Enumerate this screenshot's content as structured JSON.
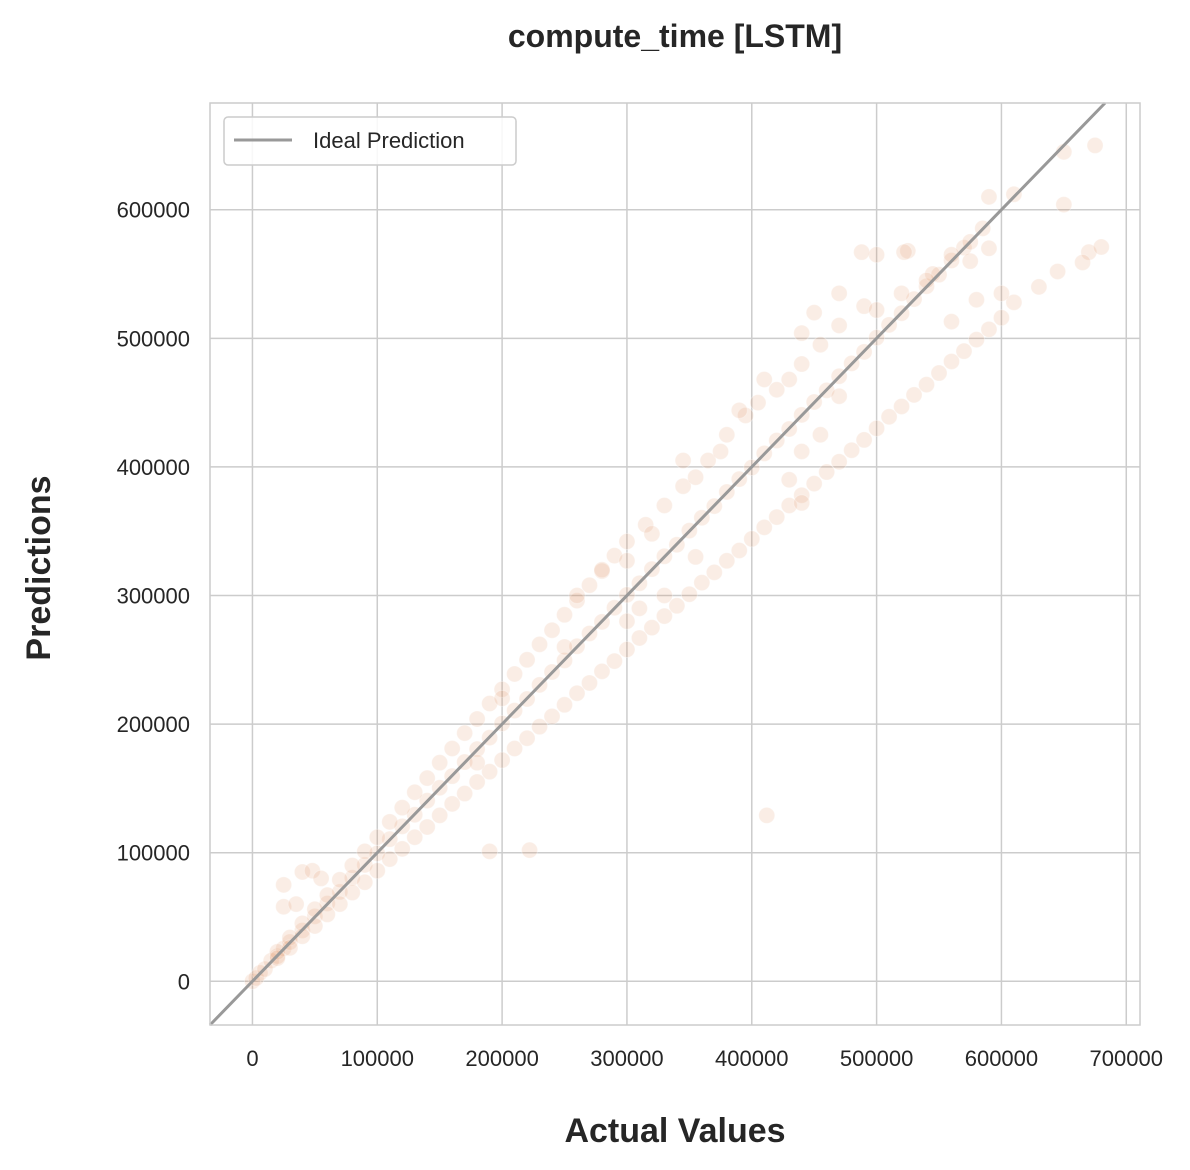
{
  "chart_data": {
    "type": "scatter",
    "title": "compute_time [LSTM]",
    "xlabel": "Actual Values",
    "ylabel": "Predictions",
    "xlim": [
      -34000,
      711000
    ],
    "ylim": [
      -34000,
      683000
    ],
    "x_ticks": [
      0,
      100000,
      200000,
      300000,
      400000,
      500000,
      600000,
      700000
    ],
    "y_ticks": [
      0,
      100000,
      200000,
      300000,
      400000,
      500000,
      600000
    ],
    "x_tick_labels": [
      "0",
      "100000",
      "200000",
      "300000",
      "400000",
      "500000",
      "600000",
      "700000"
    ],
    "y_tick_labels": [
      "0",
      "100000",
      "200000",
      "300000",
      "400000",
      "500000",
      "600000"
    ],
    "grid": true,
    "legend": {
      "position": "top-left",
      "entries": [
        "Ideal Prediction"
      ]
    },
    "reference_line": {
      "name": "Ideal Prediction",
      "slope": 1,
      "intercept": 0,
      "color": "#999999"
    },
    "point_color": "#dd8452",
    "point_alpha": 0.15,
    "series": [
      {
        "band": "ideal",
        "points": [
          [
            0,
            0
          ],
          [
            3000,
            2500
          ],
          [
            6000,
            6500
          ],
          [
            10000,
            9500
          ],
          [
            15000,
            16000
          ],
          [
            20000,
            19500
          ],
          [
            25000,
            25500
          ],
          [
            30000,
            30500
          ],
          [
            40000,
            39500
          ],
          [
            50000,
            50500
          ],
          [
            60000,
            60500
          ],
          [
            70000,
            69500
          ],
          [
            80000,
            80500
          ],
          [
            90000,
            90500
          ],
          [
            100000,
            99500
          ],
          [
            110000,
            110500
          ],
          [
            120000,
            120500
          ],
          [
            130000,
            129500
          ],
          [
            140000,
            140500
          ],
          [
            150000,
            150500
          ],
          [
            160000,
            159500
          ],
          [
            170000,
            170500
          ],
          [
            180000,
            180500
          ],
          [
            190000,
            189500
          ],
          [
            200000,
            200500
          ],
          [
            210000,
            210500
          ],
          [
            220000,
            219500
          ],
          [
            230000,
            230500
          ],
          [
            240000,
            240500
          ],
          [
            250000,
            249500
          ],
          [
            260000,
            260500
          ],
          [
            270000,
            270500
          ],
          [
            280000,
            279500
          ],
          [
            290000,
            290500
          ],
          [
            300000,
            300500
          ],
          [
            310000,
            309500
          ],
          [
            320000,
            320500
          ],
          [
            330000,
            330500
          ],
          [
            340000,
            339500
          ],
          [
            350000,
            350500
          ],
          [
            360000,
            360500
          ],
          [
            370000,
            369500
          ],
          [
            380000,
            380500
          ],
          [
            390000,
            390500
          ],
          [
            400000,
            399500
          ],
          [
            410000,
            410500
          ],
          [
            420000,
            420500
          ],
          [
            430000,
            429500
          ],
          [
            440000,
            440500
          ],
          [
            450000,
            450500
          ],
          [
            460000,
            459500
          ],
          [
            470000,
            470500
          ],
          [
            480000,
            480500
          ],
          [
            490000,
            489500
          ],
          [
            500000,
            500500
          ],
          [
            510000,
            510500
          ],
          [
            520000,
            519500
          ],
          [
            530000,
            530500
          ],
          [
            540000,
            540500
          ],
          [
            550000,
            549500
          ],
          [
            560000,
            560500
          ],
          [
            570000,
            570500
          ],
          [
            585000,
            585500
          ]
        ]
      },
      {
        "band": "over",
        "points": [
          [
            20000,
            23000
          ],
          [
            30000,
            34000
          ],
          [
            40000,
            45000
          ],
          [
            50000,
            56000
          ],
          [
            60000,
            67000
          ],
          [
            70000,
            79000
          ],
          [
            80000,
            90000
          ],
          [
            90000,
            101000
          ],
          [
            100000,
            112000
          ],
          [
            110000,
            124000
          ],
          [
            120000,
            135000
          ],
          [
            130000,
            147000
          ],
          [
            140000,
            158000
          ],
          [
            150000,
            170000
          ],
          [
            160000,
            181000
          ],
          [
            170000,
            193000
          ],
          [
            180000,
            204000
          ],
          [
            190000,
            216000
          ],
          [
            200000,
            227000
          ],
          [
            210000,
            239000
          ],
          [
            220000,
            250000
          ],
          [
            230000,
            262000
          ],
          [
            240000,
            273000
          ],
          [
            250000,
            285000
          ],
          [
            260000,
            296000
          ],
          [
            270000,
            308000
          ],
          [
            280000,
            319000
          ],
          [
            290000,
            331000
          ],
          [
            300000,
            342000
          ],
          [
            315000,
            355000
          ],
          [
            330000,
            370000
          ],
          [
            345000,
            385000
          ],
          [
            365000,
            405000
          ],
          [
            380000,
            425000
          ],
          [
            395000,
            440000
          ],
          [
            405000,
            450000
          ],
          [
            420000,
            460000
          ],
          [
            440000,
            480000
          ],
          [
            455000,
            495000
          ],
          [
            470000,
            510000
          ],
          [
            490000,
            525000
          ],
          [
            500000,
            522000
          ],
          [
            520000,
            535000
          ],
          [
            545000,
            550000
          ],
          [
            560000,
            565000
          ],
          [
            575000,
            575000
          ],
          [
            590000,
            610000
          ],
          [
            610000,
            612000
          ],
          [
            650000,
            645000
          ],
          [
            675000,
            650000
          ],
          [
            440000,
            504000
          ],
          [
            430000,
            468000
          ],
          [
            470000,
            455000
          ],
          [
            500000,
            565000
          ],
          [
            525000,
            568000
          ],
          [
            575000,
            560000
          ]
        ]
      },
      {
        "band": "under",
        "points": [
          [
            20000,
            18000
          ],
          [
            30000,
            26000
          ],
          [
            40000,
            35000
          ],
          [
            50000,
            43000
          ],
          [
            60000,
            52000
          ],
          [
            70000,
            60000
          ],
          [
            80000,
            69000
          ],
          [
            90000,
            77000
          ],
          [
            100000,
            86000
          ],
          [
            110000,
            95000
          ],
          [
            120000,
            103000
          ],
          [
            130000,
            112000
          ],
          [
            140000,
            120000
          ],
          [
            150000,
            129000
          ],
          [
            160000,
            138000
          ],
          [
            170000,
            146000
          ],
          [
            180000,
            155000
          ],
          [
            190000,
            163000
          ],
          [
            200000,
            172000
          ],
          [
            210000,
            181000
          ],
          [
            220000,
            189000
          ],
          [
            230000,
            198000
          ],
          [
            240000,
            206000
          ],
          [
            250000,
            215000
          ],
          [
            260000,
            224000
          ],
          [
            270000,
            232000
          ],
          [
            280000,
            241000
          ],
          [
            290000,
            249000
          ],
          [
            300000,
            258000
          ],
          [
            310000,
            267000
          ],
          [
            320000,
            275000
          ],
          [
            330000,
            284000
          ],
          [
            340000,
            292000
          ],
          [
            350000,
            301000
          ],
          [
            360000,
            310000
          ],
          [
            370000,
            318000
          ],
          [
            380000,
            327000
          ],
          [
            390000,
            335000
          ],
          [
            400000,
            344000
          ],
          [
            410000,
            353000
          ],
          [
            420000,
            361000
          ],
          [
            430000,
            370000
          ],
          [
            440000,
            378000
          ],
          [
            450000,
            387000
          ],
          [
            460000,
            396000
          ],
          [
            470000,
            404000
          ],
          [
            480000,
            413000
          ],
          [
            490000,
            421000
          ],
          [
            500000,
            430000
          ],
          [
            510000,
            439000
          ],
          [
            520000,
            447000
          ],
          [
            530000,
            456000
          ],
          [
            540000,
            464000
          ],
          [
            550000,
            473000
          ],
          [
            560000,
            482000
          ],
          [
            570000,
            490000
          ],
          [
            580000,
            499000
          ],
          [
            590000,
            507000
          ],
          [
            600000,
            516000
          ],
          [
            610000,
            528000
          ],
          [
            630000,
            540000
          ],
          [
            645000,
            552000
          ],
          [
            670000,
            567000
          ],
          [
            680000,
            571000
          ]
        ]
      },
      {
        "band": "outliers",
        "points": [
          [
            25000,
            75000
          ],
          [
            40000,
            85000
          ],
          [
            48000,
            86000
          ],
          [
            55000,
            80000
          ],
          [
            25000,
            58000
          ],
          [
            35000,
            60000
          ],
          [
            190000,
            101000
          ],
          [
            222000,
            102000
          ],
          [
            412000,
            129000
          ],
          [
            375000,
            412000
          ],
          [
            390000,
            444000
          ],
          [
            410000,
            468000
          ],
          [
            355000,
            392000
          ],
          [
            345000,
            405000
          ],
          [
            470000,
            535000
          ],
          [
            488000,
            567000
          ],
          [
            522000,
            567000
          ],
          [
            590000,
            570000
          ],
          [
            540000,
            545000
          ],
          [
            600000,
            535000
          ],
          [
            560000,
            513000
          ],
          [
            580000,
            530000
          ],
          [
            450000,
            520000
          ],
          [
            650000,
            604000
          ],
          [
            665000,
            559000
          ],
          [
            440000,
            372000
          ],
          [
            455000,
            425000
          ],
          [
            300000,
            327000
          ],
          [
            280000,
            320000
          ],
          [
            320000,
            348000
          ],
          [
            260000,
            300000
          ],
          [
            300000,
            280000
          ],
          [
            330000,
            300000
          ],
          [
            355000,
            330000
          ],
          [
            430000,
            390000
          ],
          [
            440000,
            412000
          ],
          [
            310000,
            290000
          ],
          [
            250000,
            260000
          ],
          [
            200000,
            220000
          ],
          [
            180000,
            170000
          ]
        ]
      }
    ]
  }
}
